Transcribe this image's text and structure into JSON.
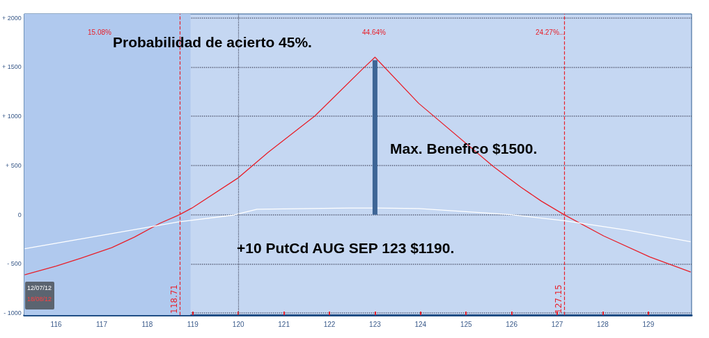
{
  "chart_data": {
    "type": "line",
    "x": [
      115.31,
      116,
      116.55,
      117.22,
      117.72,
      118.28,
      118.71,
      118.98,
      120,
      120.66,
      121.68,
      122.74,
      123,
      123.96,
      125.59,
      126.2,
      126.65,
      127.15,
      128.02,
      129.03,
      129.93
    ],
    "series": [
      {
        "color": "#e8202a",
        "values": [
          -611,
          -523,
          -441,
          -335,
          -228,
          -87,
          0,
          67,
          375,
          635,
          1003,
          1486,
          1600,
          1131,
          492,
          280,
          138,
          0,
          -216,
          -429,
          -583
        ]
      },
      {
        "color": "#ffffff",
        "x": [
          115.31,
          117.22,
          118.68,
          119.9,
          120.41,
          122.44,
          123.05,
          123.96,
          125.98,
          127.16,
          128.53,
          129.93
        ],
        "values": [
          -346,
          -193,
          -74,
          -4,
          55,
          67,
          67,
          62,
          1,
          -62,
          -157,
          -275
        ]
      },
      {
        "color": "#3d6596",
        "x": [
          123,
          123
        ],
        "values": [
          0,
          1570
        ]
      }
    ],
    "xlim": [
      115.3,
      129.95
    ],
    "ylim": [
      -1020,
      2040
    ],
    "xticks": [
      116,
      117,
      118,
      119,
      120,
      121,
      122,
      123,
      124,
      125,
      126,
      127,
      128,
      129
    ],
    "yticks": [
      {
        "value": 2000,
        "label": "+ 2000"
      },
      {
        "value": 1500,
        "label": "+ 1500"
      },
      {
        "value": 1000,
        "label": "+ 1000"
      },
      {
        "value": 500,
        "label": "+ 500"
      },
      0,
      {
        "value": -500,
        "label": "- 500"
      },
      {
        "value": -1000,
        "label": "- 1000"
      }
    ],
    "grid": "y",
    "marker": "none",
    "line_style": "solid",
    "ref_lines": [
      {
        "axis": "x",
        "value": 118.71,
        "label": "118.71",
        "color": "#e8202a",
        "line_style": "dashed"
      },
      {
        "axis": "x",
        "value": 127.15,
        "label": "127.15",
        "color": "#e8202a",
        "line_style": "dashed"
      },
      {
        "axis": "x",
        "value": 120,
        "color": "#4a4f66",
        "line_style": "dotted"
      }
    ],
    "bands": [
      {
        "axis": "x",
        "from": 115.3,
        "to": 118.95,
        "color": "#b0c9ee"
      }
    ],
    "annotations": [
      "15.08%",
      "44.64%",
      "24.27%...",
      "Max. Benefico $1500.",
      "Probabilidad de acierto 45%.",
      "+10 PutCd AUG SEP 123 $1190.",
      "12/07/12",
      "18/08/12"
    ]
  }
}
